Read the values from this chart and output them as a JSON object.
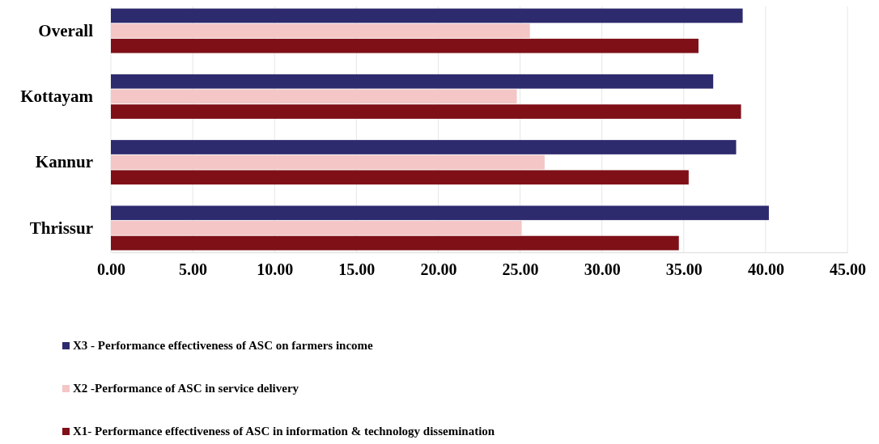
{
  "chart_data": {
    "type": "bar",
    "orientation": "horizontal",
    "categories": [
      "Overall",
      "Kottayam",
      "Kannur",
      "Thrissur"
    ],
    "series": [
      {
        "name": "X3 - Performance effectiveness of ASC on farmers income",
        "color": "#2e2a6e",
        "values": [
          38.6,
          36.8,
          38.2,
          40.2
        ]
      },
      {
        "name": "X2 -Performance of ASC in service delivery",
        "color": "#f4c6c6",
        "values": [
          25.6,
          24.8,
          26.5,
          25.1
        ]
      },
      {
        "name": "X1- Performance effectiveness of ASC in information & technology dissemination",
        "color": "#7f1018",
        "values": [
          35.9,
          38.5,
          35.3,
          34.7
        ]
      }
    ],
    "xlim": [
      0,
      45
    ],
    "xticks": [
      {
        "value": 0,
        "label": "0.00"
      },
      {
        "value": 5,
        "label": "5.00"
      },
      {
        "value": 10,
        "label": "10.00"
      },
      {
        "value": 15,
        "label": "15.00"
      },
      {
        "value": 20,
        "label": "20.00"
      },
      {
        "value": 25,
        "label": "25.00"
      },
      {
        "value": 30,
        "label": "30.00"
      },
      {
        "value": 35,
        "label": "35.00"
      },
      {
        "value": 40,
        "label": "40.00"
      },
      {
        "value": 45,
        "label": "45.00"
      }
    ],
    "grid": "x",
    "legend": "bottom"
  }
}
